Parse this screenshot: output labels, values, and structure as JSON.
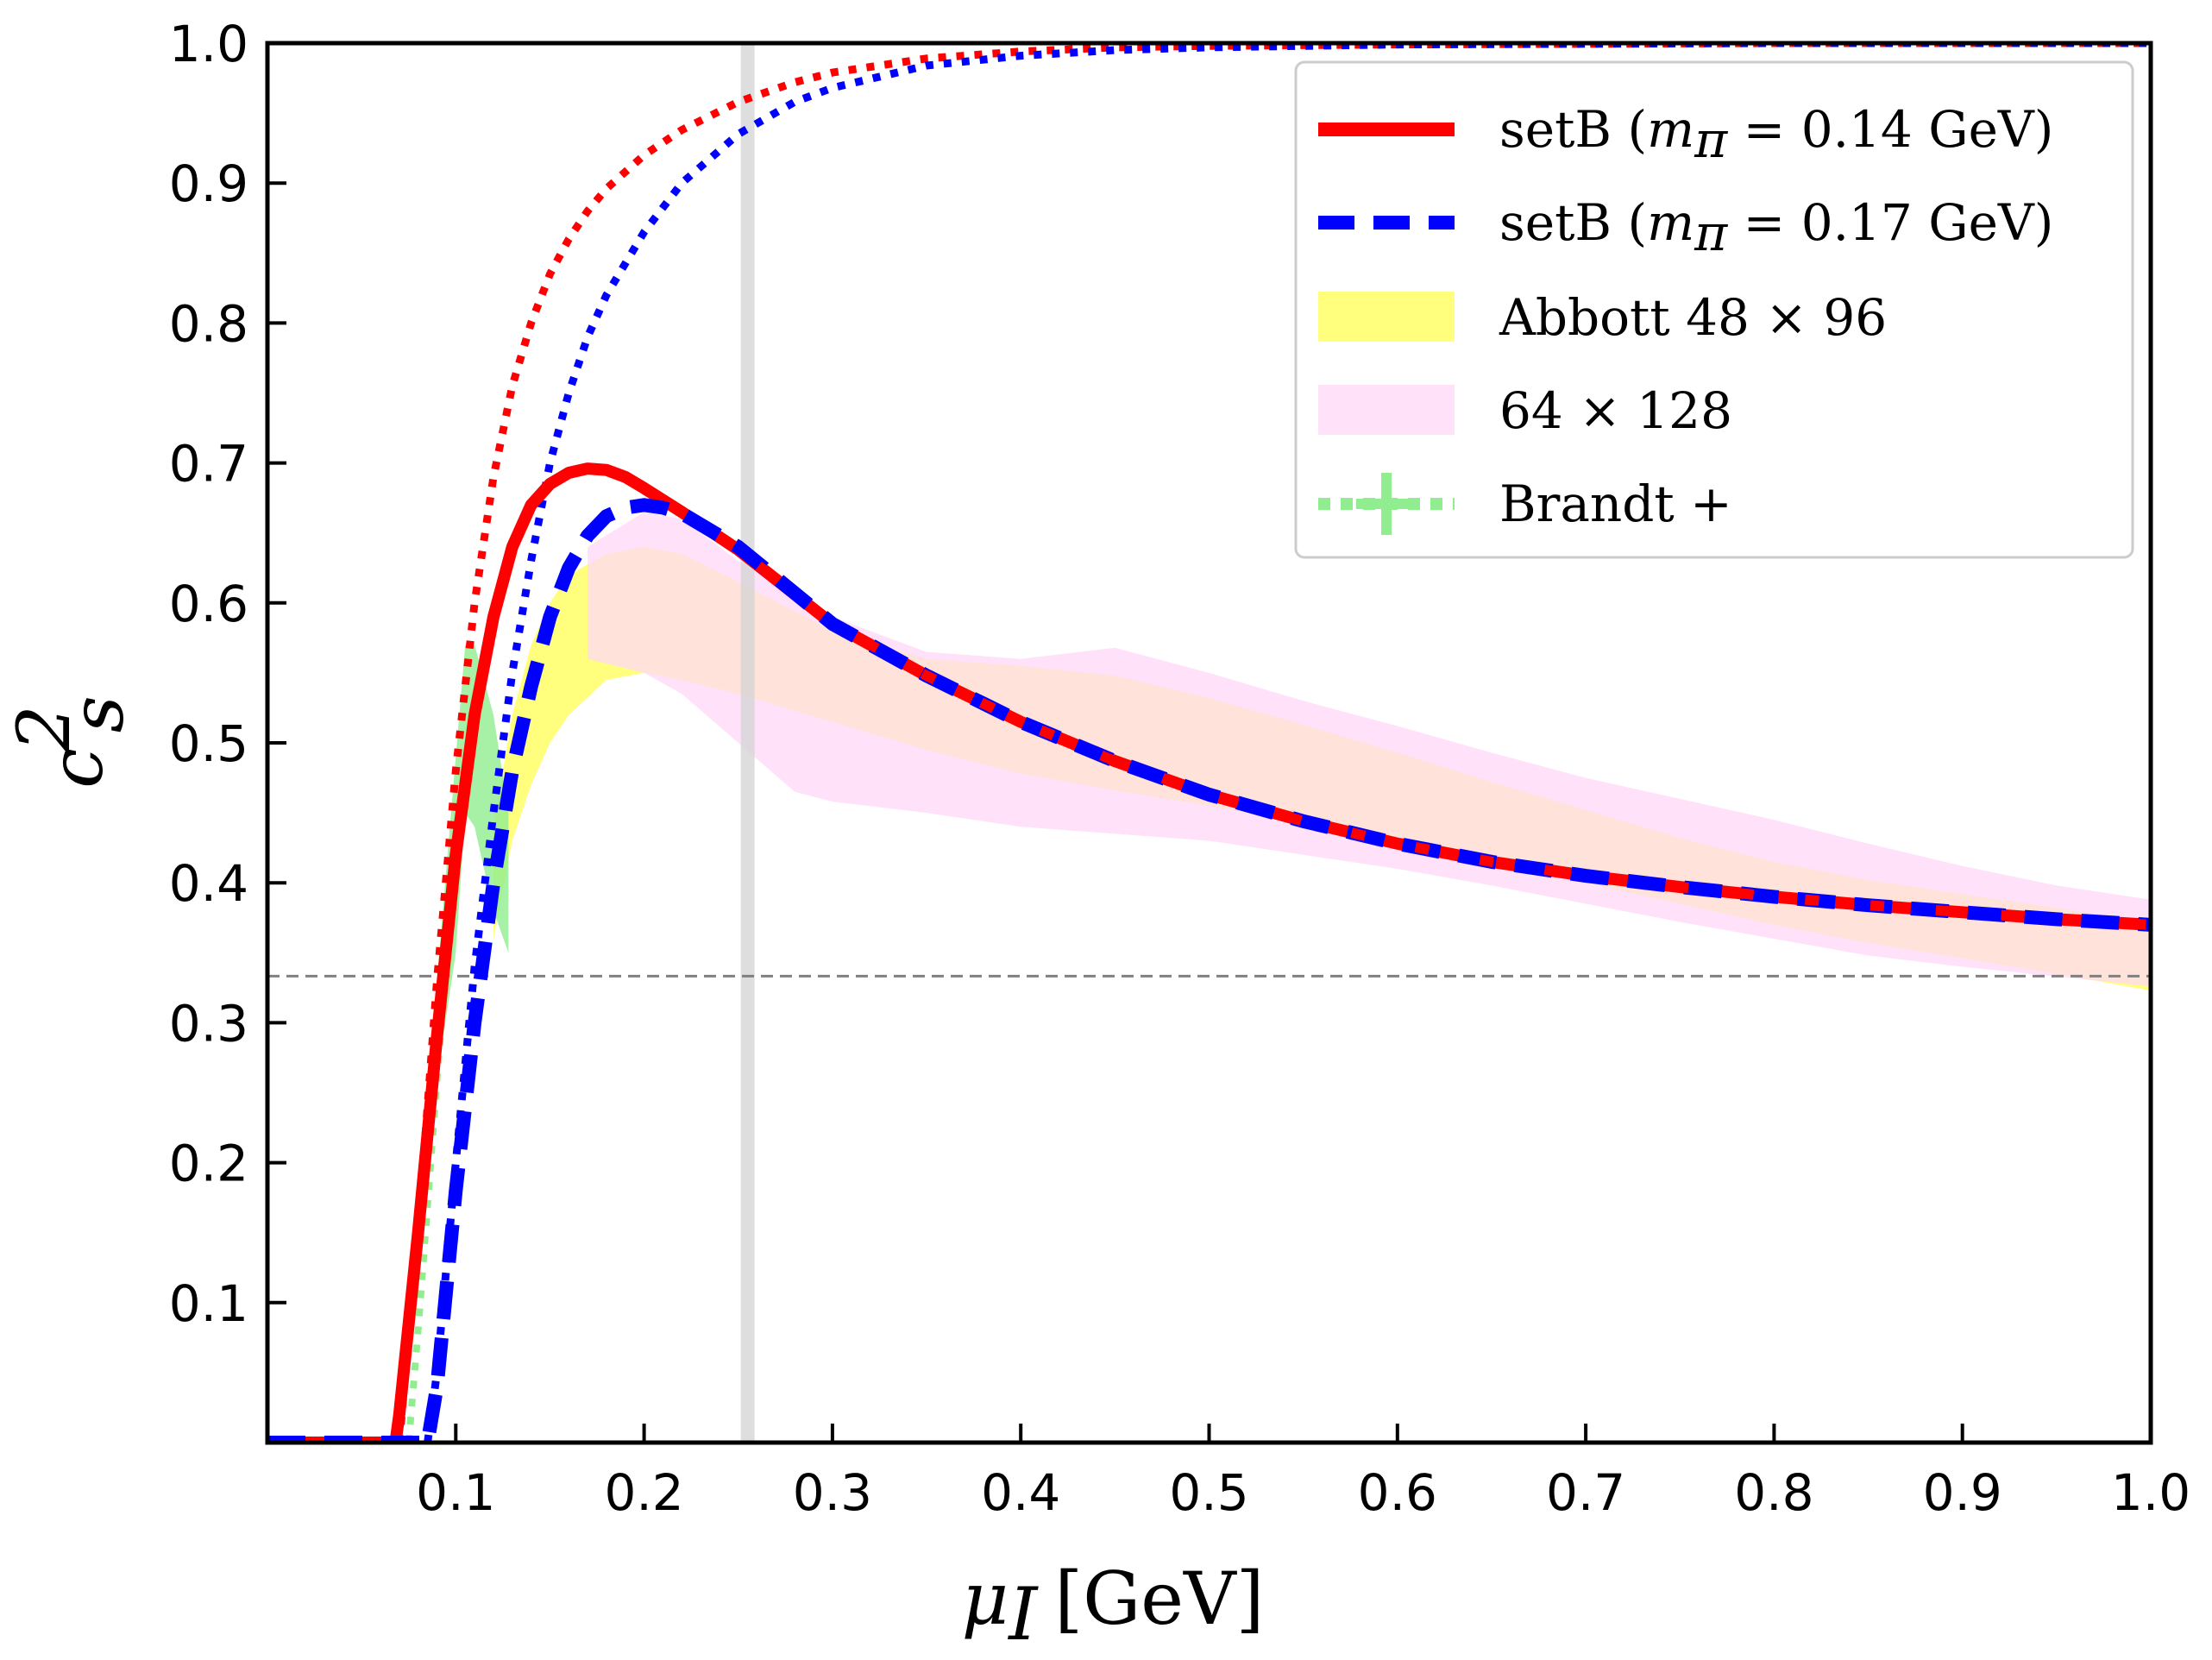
{
  "chart_data": {
    "type": "line",
    "xlabel": {
      "symbol": "μ",
      "subscript": "I",
      "unit": "[GeV]"
    },
    "ylabel": {
      "symbol": "c",
      "subscript": "s",
      "superscript": "2"
    },
    "xlim": [
      0.0,
      1.0
    ],
    "ylim": [
      0.0,
      1.0
    ],
    "xticks": [
      0.1,
      0.2,
      0.3,
      0.4,
      0.5,
      0.6,
      0.7,
      0.8,
      0.9,
      1.0
    ],
    "xtick_labels": [
      "0.1",
      "0.2",
      "0.3",
      "0.4",
      "0.5",
      "0.6",
      "0.7",
      "0.8",
      "0.9",
      "1.0"
    ],
    "yticks": [
      0.1,
      0.2,
      0.3,
      0.4,
      0.5,
      0.6,
      0.7,
      0.8,
      0.9,
      1.0
    ],
    "ytick_labels": [
      "0.1",
      "0.2",
      "0.3",
      "0.4",
      "0.5",
      "0.6",
      "0.7",
      "0.8",
      "0.9",
      "1.0"
    ],
    "reference_lines": {
      "horizontal_conformal": 0.3333,
      "vertical_band": 0.255
    },
    "legend_position": "top-right",
    "series": [
      {
        "name": "setB_014",
        "legend_label": {
          "prefix": "setB (",
          "var": "m",
          "sub": "π",
          "eq": " = 0.14 GeV)"
        },
        "color": "#ff0000",
        "style": "solid",
        "x": [
          0.0,
          0.068,
          0.07,
          0.08,
          0.09,
          0.1,
          0.11,
          0.12,
          0.13,
          0.14,
          0.15,
          0.16,
          0.17,
          0.18,
          0.19,
          0.2,
          0.22,
          0.25,
          0.3,
          0.35,
          0.4,
          0.45,
          0.5,
          0.55,
          0.6,
          0.65,
          0.7,
          0.75,
          0.8,
          0.85,
          0.9,
          0.95,
          1.0
        ],
        "y": [
          0.0,
          0.0,
          0.02,
          0.15,
          0.29,
          0.42,
          0.52,
          0.59,
          0.64,
          0.67,
          0.685,
          0.693,
          0.696,
          0.695,
          0.69,
          0.682,
          0.665,
          0.638,
          0.585,
          0.548,
          0.515,
          0.487,
          0.463,
          0.444,
          0.428,
          0.415,
          0.405,
          0.397,
          0.39,
          0.384,
          0.379,
          0.374,
          0.37
        ]
      },
      {
        "name": "setB_017",
        "legend_label": {
          "prefix": "setB (",
          "var": "m",
          "sub": "π",
          "eq": " = 0.17 GeV)"
        },
        "color": "#0000ff",
        "style": "dashed",
        "x": [
          0.0,
          0.085,
          0.09,
          0.1,
          0.11,
          0.12,
          0.13,
          0.14,
          0.15,
          0.16,
          0.17,
          0.18,
          0.19,
          0.2,
          0.21,
          0.22,
          0.25,
          0.3,
          0.35,
          0.4,
          0.45,
          0.5,
          0.55,
          0.6,
          0.65,
          0.7,
          0.75,
          0.8,
          0.85,
          0.9,
          0.95,
          1.0
        ],
        "y": [
          0.0,
          0.0,
          0.04,
          0.18,
          0.3,
          0.4,
          0.48,
          0.54,
          0.59,
          0.625,
          0.648,
          0.662,
          0.668,
          0.67,
          0.668,
          0.664,
          0.64,
          0.585,
          0.548,
          0.515,
          0.487,
          0.463,
          0.444,
          0.428,
          0.415,
          0.405,
          0.397,
          0.39,
          0.384,
          0.379,
          0.374,
          0.37
        ]
      },
      {
        "name": "red_dotted",
        "color": "#ff0000",
        "style": "dotted",
        "x": [
          0.07,
          0.08,
          0.09,
          0.1,
          0.11,
          0.12,
          0.13,
          0.14,
          0.15,
          0.16,
          0.17,
          0.18,
          0.2,
          0.22,
          0.25,
          0.28,
          0.3,
          0.35,
          0.4,
          0.45,
          0.5,
          0.6,
          0.7,
          0.8,
          0.9,
          1.0
        ],
        "y": [
          0.0,
          0.15,
          0.33,
          0.48,
          0.6,
          0.69,
          0.755,
          0.8,
          0.835,
          0.86,
          0.88,
          0.896,
          0.92,
          0.938,
          0.958,
          0.972,
          0.979,
          0.989,
          0.994,
          0.997,
          0.998,
          0.999,
          0.9995,
          1.0,
          1.0,
          1.0
        ]
      },
      {
        "name": "blue_dotted",
        "color": "#0000ff",
        "style": "dotted",
        "x": [
          0.085,
          0.09,
          0.1,
          0.11,
          0.12,
          0.13,
          0.14,
          0.15,
          0.16,
          0.17,
          0.18,
          0.2,
          0.22,
          0.25,
          0.28,
          0.3,
          0.35,
          0.4,
          0.45,
          0.5,
          0.6,
          0.7,
          0.8,
          0.9,
          1.0
        ],
        "y": [
          0.0,
          0.05,
          0.2,
          0.34,
          0.45,
          0.55,
          0.63,
          0.7,
          0.75,
          0.79,
          0.82,
          0.865,
          0.9,
          0.935,
          0.958,
          0.968,
          0.984,
          0.991,
          0.995,
          0.997,
          0.999,
          0.9995,
          1.0,
          1.0,
          1.0
        ]
      },
      {
        "name": "Brandt",
        "legend_label": "Brandt +",
        "color": "#90ee90",
        "style": "dotted",
        "x": [
          0.075,
          0.08,
          0.085,
          0.09,
          0.095,
          0.1,
          0.105,
          0.11
        ],
        "y": [
          0.0,
          0.08,
          0.17,
          0.26,
          0.34,
          0.41,
          0.47,
          0.52
        ]
      }
    ],
    "bands": [
      {
        "name": "Abbott_48x96",
        "legend_label": "Abbott 48 × 96",
        "color": "#ffff66",
        "opacity": 0.85,
        "x": [
          0.12,
          0.13,
          0.14,
          0.15,
          0.16,
          0.18,
          0.2,
          0.22,
          0.25,
          0.3,
          0.35,
          0.4,
          0.45,
          0.5,
          0.55,
          0.6,
          0.65,
          0.7,
          0.75,
          0.8,
          0.85,
          0.9,
          0.95,
          1.0
        ],
        "upper": [
          0.44,
          0.52,
          0.57,
          0.6,
          0.62,
          0.635,
          0.64,
          0.635,
          0.615,
          0.58,
          0.56,
          0.555,
          0.548,
          0.532,
          0.513,
          0.493,
          0.472,
          0.452,
          0.432,
          0.415,
          0.402,
          0.392,
          0.382,
          0.372
        ],
        "lower": [
          0.36,
          0.43,
          0.47,
          0.5,
          0.52,
          0.545,
          0.55,
          0.545,
          0.535,
          0.515,
          0.495,
          0.478,
          0.466,
          0.455,
          0.443,
          0.43,
          0.415,
          0.4,
          0.385,
          0.37,
          0.357,
          0.346,
          0.335,
          0.323
        ]
      },
      {
        "name": "lattice_64x128",
        "legend_label": "64 × 128",
        "color": "#ffd8f8",
        "opacity": 0.75,
        "x": [
          0.17,
          0.2,
          0.22,
          0.25,
          0.28,
          0.3,
          0.35,
          0.4,
          0.45,
          0.5,
          0.55,
          0.6,
          0.65,
          0.7,
          0.75,
          0.8,
          0.85,
          0.9,
          0.95,
          1.0
        ],
        "upper": [
          0.64,
          0.665,
          0.66,
          0.63,
          0.605,
          0.59,
          0.565,
          0.56,
          0.568,
          0.55,
          0.53,
          0.512,
          0.493,
          0.475,
          0.46,
          0.445,
          0.428,
          0.412,
          0.398,
          0.388
        ],
        "lower": [
          0.56,
          0.55,
          0.535,
          0.5,
          0.465,
          0.458,
          0.45,
          0.44,
          0.435,
          0.43,
          0.42,
          0.41,
          0.398,
          0.385,
          0.372,
          0.36,
          0.348,
          0.34,
          0.333,
          0.326
        ]
      }
    ]
  },
  "colors": {
    "setB_014": "#ff0000",
    "setB_017": "#0000ff",
    "abbott": "#ffff66",
    "lattice": "#ffd8f8",
    "brandt": "#90ee90",
    "reference_line": "#808080",
    "vertical_band": "#d3d3d3"
  }
}
